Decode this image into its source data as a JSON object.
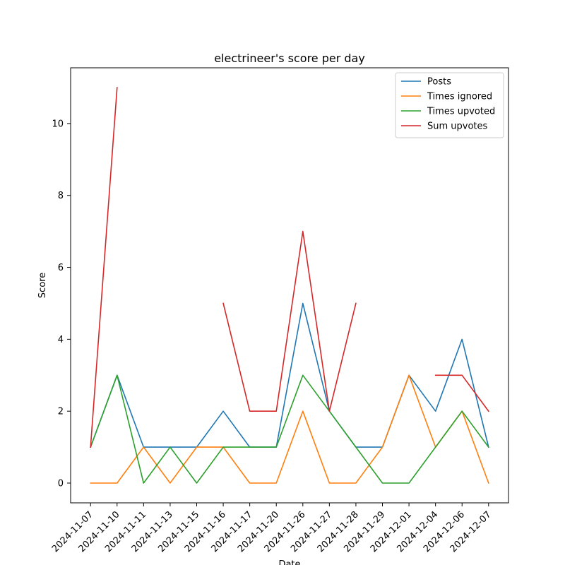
{
  "chart_data": {
    "type": "line",
    "title": "electrineer's score per day",
    "xlabel": "Date",
    "ylabel": "Score",
    "x": [
      "2024-11-07",
      "2024-11-10",
      "2024-11-11",
      "2024-11-13",
      "2024-11-15",
      "2024-11-16",
      "2024-11-17",
      "2024-11-20",
      "2024-11-26",
      "2024-11-27",
      "2024-11-28",
      "2024-11-29",
      "2024-12-01",
      "2024-12-04",
      "2024-12-06",
      "2024-12-07"
    ],
    "yticks": [
      0,
      2,
      4,
      6,
      8,
      10
    ],
    "ylim": [
      -0.55,
      11.55
    ],
    "grid": false,
    "legend_position": "top-right",
    "series": [
      {
        "name": "Posts",
        "color": "#1f77b4",
        "values": [
          1,
          3,
          1,
          1,
          1,
          2,
          1,
          1,
          5,
          2,
          1,
          1,
          3,
          2,
          4,
          1
        ]
      },
      {
        "name": "Times ignored",
        "color": "#ff7f0e",
        "values": [
          0,
          0,
          1,
          0,
          1,
          1,
          0,
          0,
          2,
          0,
          0,
          1,
          3,
          1,
          2,
          0
        ]
      },
      {
        "name": "Times upvoted",
        "color": "#2ca02c",
        "values": [
          1,
          3,
          0,
          1,
          0,
          1,
          1,
          1,
          3,
          2,
          1,
          0,
          0,
          1,
          2,
          1
        ]
      },
      {
        "name": "Sum upvotes",
        "color": "#d62728",
        "values": [
          1,
          11,
          null,
          null,
          null,
          5,
          2,
          2,
          7,
          2,
          5,
          null,
          null,
          3,
          3,
          2
        ]
      }
    ]
  }
}
